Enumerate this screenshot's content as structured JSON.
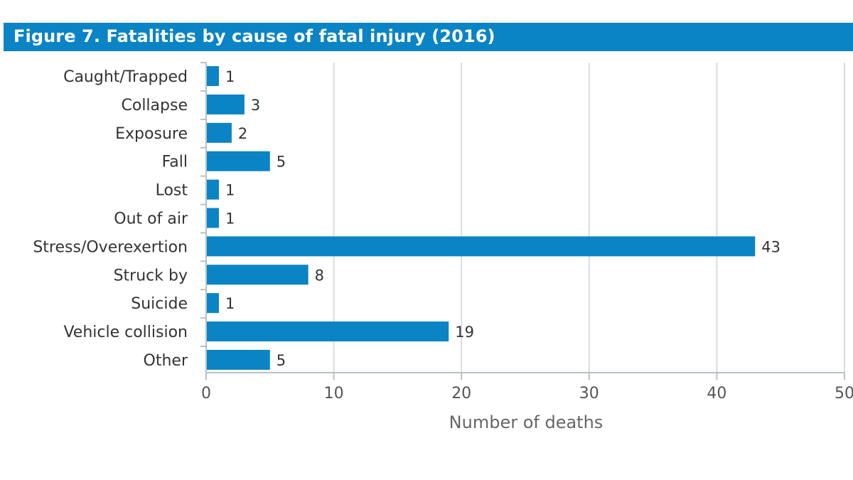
{
  "title": "Figure 7. Fatalities by cause of fatal injury (2016)",
  "colors": {
    "title_band": "#0a84c4",
    "bar": "#0a84c4",
    "grid": "#d7dde1",
    "axis": "#b8c0c6"
  },
  "chart_data": {
    "type": "bar",
    "orientation": "horizontal",
    "title": "Figure 7. Fatalities by cause of fatal injury (2016)",
    "xlabel": "Number of deaths",
    "ylabel": "",
    "categories": [
      "Caught/Trapped",
      "Collapse",
      "Exposure",
      "Fall",
      "Lost",
      "Out of air",
      "Stress/Overexertion",
      "Struck by",
      "Suicide",
      "Vehicle collision",
      "Other"
    ],
    "values": [
      1,
      3,
      2,
      5,
      1,
      1,
      43,
      8,
      1,
      19,
      5
    ],
    "xlim": [
      0,
      50
    ],
    "xticks": [
      0,
      10,
      20,
      30,
      40,
      50
    ],
    "grid": "vertical",
    "data_labels": true
  }
}
